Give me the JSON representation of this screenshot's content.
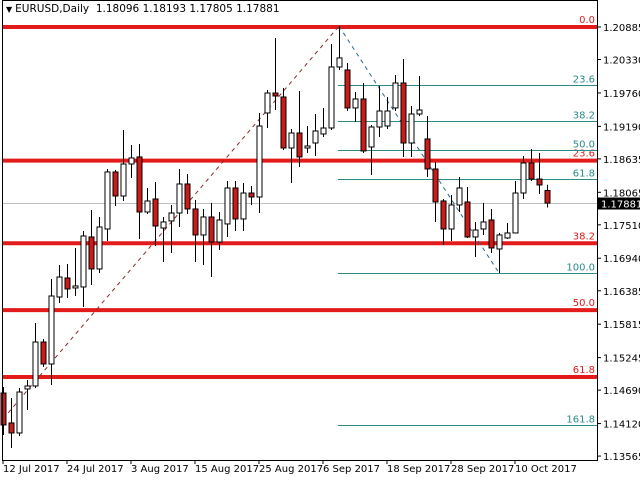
{
  "header": {
    "symbol": "EURUSD,Daily",
    "open": "1.18096",
    "high": "1.18193",
    "low": "1.17805",
    "close": "1.17881",
    "menu_icon": "triangle-down-icon"
  },
  "colors": {
    "bull_body": "#ffffff",
    "bear_body": "#cc1a1a",
    "wick": "#000000",
    "fib_main": "#e31b1b",
    "fib_ext": "#2b8a8a",
    "trend_up": "#8a2a2a",
    "trend_down": "#2b6a8a",
    "bid_line": "#c0c0c0",
    "bid_label_bg": "#000000"
  },
  "chart_data": {
    "type": "candlestick",
    "timeframe": "Daily",
    "ylim": [
      1.1352,
      1.2104
    ],
    "price_ticks": [
      "1.20885",
      "1.20330",
      "1.19760",
      "1.19190",
      "1.18635",
      "1.18065",
      "1.17510",
      "1.16940",
      "1.16385",
      "1.15815",
      "1.15245",
      "1.14690",
      "1.14120",
      "1.13565"
    ],
    "date_labels": [
      {
        "index": 0,
        "label": "12 Jul 2017"
      },
      {
        "index": 8,
        "label": "24 Jul 2017"
      },
      {
        "index": 16,
        "label": "3 Aug 2017"
      },
      {
        "index": 24,
        "label": "15 Aug 2017"
      },
      {
        "index": 32,
        "label": "25 Aug 2017"
      },
      {
        "index": 40,
        "label": "6 Sep 2017"
      },
      {
        "index": 48,
        "label": "18 Sep 2017"
      },
      {
        "index": 56,
        "label": "28 Sep 2017"
      },
      {
        "index": 64,
        "label": "10 Oct 2017"
      }
    ],
    "bid": "1.17881",
    "candles_columns": [
      "date",
      "open",
      "high",
      "low",
      "close"
    ],
    "candles": [
      [
        "2017-07-12",
        1.14641,
        1.14744,
        1.13925,
        1.14096
      ],
      [
        "2017-07-13",
        1.1413,
        1.14556,
        1.13703,
        1.13959
      ],
      [
        "2017-07-14",
        1.13959,
        1.14727,
        1.13908,
        1.14658
      ],
      [
        "2017-07-17",
        1.1471,
        1.14863,
        1.14351,
        1.14761
      ],
      [
        "2017-07-18",
        1.14761,
        1.15836,
        1.14727,
        1.15511
      ],
      [
        "2017-07-19",
        1.15511,
        1.15563,
        1.15085,
        1.15136
      ],
      [
        "2017-07-20",
        1.15136,
        1.16586,
        1.14778,
        1.16296
      ],
      [
        "2017-07-21",
        1.16279,
        1.16825,
        1.16177,
        1.1662
      ],
      [
        "2017-07-24",
        1.16603,
        1.16842,
        1.16262,
        1.16416
      ],
      [
        "2017-07-25",
        1.16433,
        1.17115,
        1.16296,
        1.16467
      ],
      [
        "2017-07-26",
        1.1645,
        1.17405,
        1.16108,
        1.1732
      ],
      [
        "2017-07-27",
        1.17303,
        1.17763,
        1.16484,
        1.16757
      ],
      [
        "2017-07-28",
        1.16757,
        1.17644,
        1.16689,
        1.17473
      ],
      [
        "2017-07-31",
        1.17439,
        1.18463,
        1.17235,
        1.18412
      ],
      [
        "2017-08-01",
        1.18412,
        1.18446,
        1.17832,
        1.18002
      ],
      [
        "2017-08-02",
        1.18002,
        1.19128,
        1.17917,
        1.18548
      ],
      [
        "2017-08-03",
        1.18548,
        1.18872,
        1.18309,
        1.18651
      ],
      [
        "2017-08-04",
        1.18668,
        1.18889,
        1.17269,
        1.17729
      ],
      [
        "2017-08-07",
        1.17729,
        1.18139,
        1.17695,
        1.17917
      ],
      [
        "2017-08-08",
        1.17951,
        1.18241,
        1.17149,
        1.1749
      ],
      [
        "2017-08-09",
        1.17456,
        1.17644,
        1.16876,
        1.17559
      ],
      [
        "2017-08-10",
        1.17576,
        1.17849,
        1.1703,
        1.17712
      ],
      [
        "2017-08-11",
        1.17712,
        1.18463,
        1.17473,
        1.18207
      ],
      [
        "2017-08-14",
        1.18207,
        1.18378,
        1.17695,
        1.17781
      ],
      [
        "2017-08-15",
        1.17781,
        1.17934,
        1.16876,
        1.17337
      ],
      [
        "2017-08-16",
        1.17337,
        1.17781,
        1.16825,
        1.17644
      ],
      [
        "2017-08-17",
        1.17644,
        1.17883,
        1.1662,
        1.17217
      ],
      [
        "2017-08-18",
        1.17217,
        1.17729,
        1.17081,
        1.17593
      ],
      [
        "2017-08-21",
        1.17525,
        1.18258,
        1.17303,
        1.18139
      ],
      [
        "2017-08-22",
        1.18139,
        1.18258,
        1.17405,
        1.1761
      ],
      [
        "2017-08-23",
        1.1761,
        1.18224,
        1.17405,
        1.18053
      ],
      [
        "2017-08-24",
        1.18053,
        1.18173,
        1.17849,
        1.17985
      ],
      [
        "2017-08-25",
        1.17985,
        1.19418,
        1.17712,
        1.19196
      ],
      [
        "2017-08-28",
        1.19418,
        1.19811,
        1.19162,
        1.19759
      ],
      [
        "2017-08-29",
        1.19759,
        1.20698,
        1.19469,
        1.19708
      ],
      [
        "2017-08-30",
        1.19691,
        1.19845,
        1.18787,
        1.18821
      ],
      [
        "2017-08-31",
        1.18821,
        1.19145,
        1.18224,
        1.19077
      ],
      [
        "2017-09-01",
        1.19077,
        1.19794,
        1.18497,
        1.18668
      ],
      [
        "2017-09-04",
        1.18821,
        1.19196,
        1.18736,
        1.18855
      ],
      [
        "2017-09-05",
        1.18906,
        1.19401,
        1.18685,
        1.19111
      ],
      [
        "2017-09-06",
        1.1906,
        1.19504,
        1.19009,
        1.19162
      ],
      [
        "2017-09-07",
        1.19162,
        1.20595,
        1.19128,
        1.20203
      ],
      [
        "2017-09-08",
        1.20203,
        1.209,
        1.20152,
        1.20357
      ],
      [
        "2017-09-11",
        1.20152,
        1.20271,
        1.19452,
        1.19504
      ],
      [
        "2017-09-12",
        1.19504,
        1.19776,
        1.19265,
        1.19657
      ],
      [
        "2017-09-13",
        1.19657,
        1.1993,
        1.18736,
        1.1877
      ],
      [
        "2017-09-14",
        1.18838,
        1.19213,
        1.1836,
        1.19179
      ],
      [
        "2017-09-15",
        1.19179,
        1.19879,
        1.19009,
        1.19452
      ],
      [
        "2017-09-18",
        1.19196,
        1.19691,
        1.19145,
        1.19452
      ],
      [
        "2017-09-19",
        1.19504,
        1.20066,
        1.19452,
        1.1993
      ],
      [
        "2017-09-20",
        1.1993,
        1.20339,
        1.18668,
        1.18906
      ],
      [
        "2017-09-21",
        1.18906,
        1.19538,
        1.18668,
        1.19401
      ],
      [
        "2017-09-22",
        1.19401,
        1.20049,
        1.19367,
        1.19469
      ],
      [
        "2017-09-25",
        1.18975,
        1.19367,
        1.18326,
        1.18463
      ],
      [
        "2017-09-26",
        1.18463,
        1.18582,
        1.17559,
        1.179
      ],
      [
        "2017-09-27",
        1.17917,
        1.17951,
        1.17166,
        1.17439
      ],
      [
        "2017-09-28",
        1.17439,
        1.18019,
        1.17235,
        1.17849
      ],
      [
        "2017-09-29",
        1.17849,
        1.18326,
        1.17729,
        1.18139
      ],
      [
        "2017-10-02",
        1.179,
        1.18156,
        1.17286,
        1.17303
      ],
      [
        "2017-10-03",
        1.17303,
        1.17559,
        1.16962,
        1.17422
      ],
      [
        "2017-10-04",
        1.17439,
        1.17883,
        1.17337,
        1.17559
      ],
      [
        "2017-10-05",
        1.17593,
        1.17781,
        1.1703,
        1.17115
      ],
      [
        "2017-10-06",
        1.17098,
        1.17371,
        1.16689,
        1.17337
      ],
      [
        "2017-10-09",
        1.17286,
        1.17542,
        1.17269,
        1.17371
      ],
      [
        "2017-10-10",
        1.17371,
        1.18258,
        1.17371,
        1.18053
      ],
      [
        "2017-10-11",
        1.18053,
        1.18685,
        1.17951,
        1.18565
      ],
      [
        "2017-10-12",
        1.18565,
        1.18804,
        1.18258,
        1.18292
      ],
      [
        "2017-10-13",
        1.18292,
        1.18736,
        1.18036,
        1.1819
      ],
      [
        "2017-10-16",
        1.18096,
        1.18193,
        1.17805,
        1.17881
      ]
    ],
    "fib_main": {
      "start_index": 0,
      "levels": [
        {
          "label": "0.0",
          "price": 1.20885
        },
        {
          "label": "23.6",
          "price": 1.18605
        },
        {
          "label": "38.2",
          "price": 1.17195
        },
        {
          "label": "50.0",
          "price": 1.16055
        },
        {
          "label": "61.8",
          "price": 1.14915
        }
      ]
    },
    "fib_ext": {
      "start_index": 42,
      "levels": [
        {
          "label": "23.6",
          "price": 1.1989
        },
        {
          "label": "38.2",
          "price": 1.19275
        },
        {
          "label": "50.0",
          "price": 1.1878
        },
        {
          "label": "61.8",
          "price": 1.18285
        },
        {
          "label": "100.0",
          "price": 1.16689
        },
        {
          "label": "161.8",
          "price": 1.14089
        }
      ]
    },
    "trendlines": [
      {
        "from": [
          0,
          1.142
        ],
        "to": [
          42,
          1.209
        ],
        "style": "dashed",
        "color_key": "trend_up"
      },
      {
        "from": [
          42,
          1.209
        ],
        "to": [
          62,
          1.16689
        ],
        "style": "dashed",
        "color_key": "trend_down"
      }
    ]
  }
}
